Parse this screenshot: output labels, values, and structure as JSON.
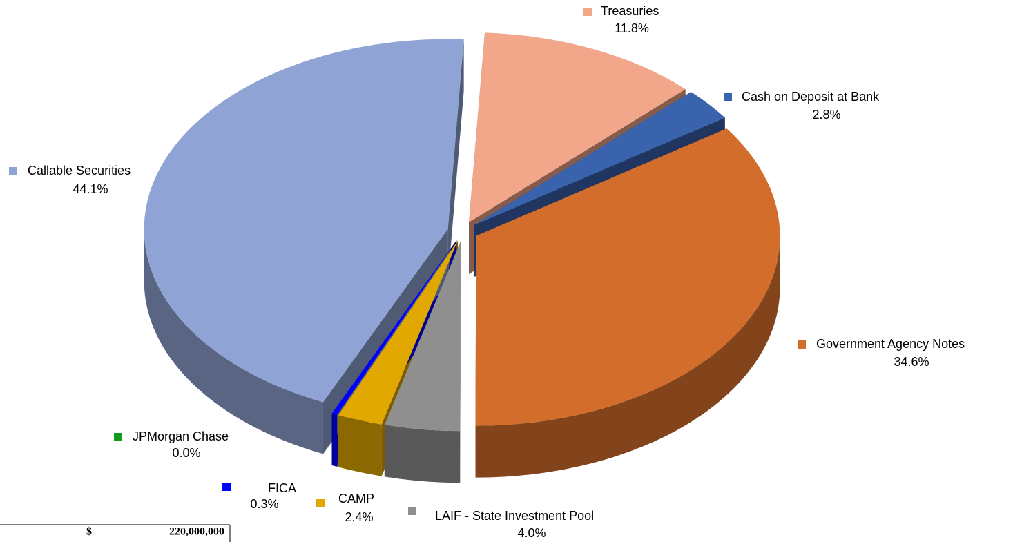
{
  "chart_data": {
    "type": "pie3d",
    "categories": [
      "Treasuries",
      "Cash on Deposit at Bank",
      "Government Agency Notes",
      "LAIF - State Investment Pool",
      "CAMP",
      "FICA",
      "JPMorgan Chase",
      "Callable Securities"
    ],
    "values": [
      11.8,
      2.8,
      34.6,
      4.0,
      2.4,
      0.3,
      0.0,
      44.1
    ],
    "value_labels": [
      "11.8%",
      "2.8%",
      "34.6%",
      "4.0%",
      "2.4%",
      "0.3%",
      "0.0%",
      "44.1%"
    ],
    "colors": [
      "#f2a68a",
      "#3a63ae",
      "#d36d2b",
      "#8f8f8f",
      "#e0a800",
      "#0000ff",
      "#129a1f",
      "#8fa3d4"
    ]
  },
  "table_fragment": {
    "currency": "$",
    "amount": "220,000,000"
  }
}
